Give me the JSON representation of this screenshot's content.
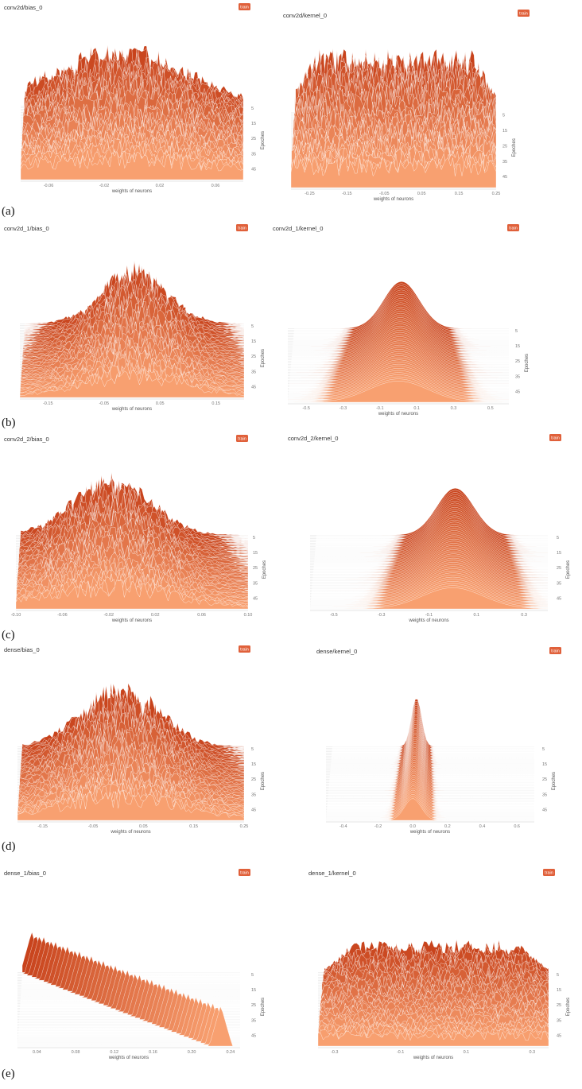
{
  "figure": {
    "colors": {
      "front": "#f8a070",
      "back": "#c8431c",
      "badge": "#e0603a",
      "grid": "#d9d9d9",
      "axis_text": "#777777"
    },
    "row_labels": [
      "(a)",
      "(b)",
      "(c)",
      "(d)",
      "(e)"
    ]
  },
  "chart_data": [
    {
      "type": "area",
      "subtype": "histogram-ridge",
      "title": "conv2d/bias_0",
      "badge": "train",
      "xlabel": "weights of neurons",
      "ylabel": "Epoches",
      "x_ticks": [
        "-0.06",
        "-0.02",
        "0.02",
        "0.06"
      ],
      "xlim": [
        -0.08,
        0.08
      ],
      "y_ticks": [
        "5",
        "15",
        "25",
        "35",
        "45"
      ],
      "ylim": [
        0,
        49
      ],
      "shape": "spiky",
      "center": -0.01,
      "width": 0.05,
      "peak": 0.9
    },
    {
      "type": "area",
      "subtype": "histogram-ridge",
      "title": "conv2d/kernel_0",
      "badge": "train",
      "xlabel": "weights of neurons",
      "ylabel": "Epoches",
      "x_ticks": [
        "-0.25",
        "-0.15",
        "-0.05",
        "0.05",
        "0.15",
        "0.25"
      ],
      "xlim": [
        -0.3,
        0.25
      ],
      "y_ticks": [
        "5",
        "15",
        "25",
        "35",
        "45"
      ],
      "ylim": [
        0,
        49
      ],
      "shape": "plateau",
      "center": -0.03,
      "width": 0.2,
      "peak": 0.88
    },
    {
      "type": "area",
      "subtype": "histogram-ridge",
      "title": "conv2d_1/bias_0",
      "badge": "train",
      "xlabel": "weights of neurons",
      "ylabel": "Epoches",
      "x_ticks": [
        "-0.15",
        "-0.05",
        "0.05",
        "0.15"
      ],
      "xlim": [
        -0.2,
        0.2
      ],
      "y_ticks": [
        "5",
        "15",
        "25",
        "35",
        "45"
      ],
      "ylim": [
        0,
        49
      ],
      "shape": "spiky",
      "center": 0.0,
      "width": 0.06,
      "peak": 0.9
    },
    {
      "type": "area",
      "subtype": "histogram-ridge",
      "title": "conv2d_1/kernel_0",
      "badge": "train",
      "xlabel": "weights of neurons",
      "ylabel": "Epoches",
      "x_ticks": [
        "-0.5",
        "-0.3",
        "-0.1",
        "0.1",
        "0.3",
        "0.5"
      ],
      "xlim": [
        -0.6,
        0.6
      ],
      "y_ticks": [
        "5",
        "15",
        "25",
        "35",
        "45"
      ],
      "ylim": [
        0,
        49
      ],
      "shape": "gaussian",
      "center": 0.0,
      "width": 0.1,
      "peak": 0.92
    },
    {
      "type": "area",
      "subtype": "histogram-ridge",
      "title": "conv2d_2/bias_0",
      "badge": "train",
      "xlabel": "weights of neurons",
      "ylabel": "Epoches",
      "x_ticks": [
        "-0.10",
        "-0.06",
        "-0.02",
        "0.02",
        "0.06",
        "0.10"
      ],
      "xlim": [
        -0.1,
        0.1
      ],
      "y_ticks": [
        "5",
        "15",
        "25",
        "35",
        "45"
      ],
      "ylim": [
        0,
        49
      ],
      "shape": "spiky",
      "center": -0.02,
      "width": 0.035,
      "peak": 0.9
    },
    {
      "type": "area",
      "subtype": "histogram-ridge",
      "title": "conv2d_2/kernel_0",
      "badge": "train",
      "xlabel": "weights of neurons",
      "ylabel": "Epoches",
      "x_ticks": [
        "-0.5",
        "-0.3",
        "-0.1",
        "0.1",
        "0.3"
      ],
      "xlim": [
        -0.6,
        0.4
      ],
      "y_ticks": [
        "5",
        "15",
        "25",
        "35",
        "45"
      ],
      "ylim": [
        0,
        49
      ],
      "shape": "gaussian",
      "center": 0.0,
      "width": 0.08,
      "peak": 0.92
    },
    {
      "type": "area",
      "subtype": "histogram-ridge",
      "title": "dense/bias_0",
      "badge": "train",
      "xlabel": "weights of neurons",
      "ylabel": "Epoches",
      "x_ticks": [
        "-0.15",
        "-0.05",
        "0.05",
        "0.15",
        "0.25"
      ],
      "xlim": [
        -0.2,
        0.25
      ],
      "y_ticks": [
        "5",
        "15",
        "25",
        "35",
        "45"
      ],
      "ylim": [
        0,
        49
      ],
      "shape": "spiky",
      "center": 0.0,
      "width": 0.08,
      "peak": 0.92
    },
    {
      "type": "area",
      "subtype": "histogram-ridge",
      "title": "dense/kernel_0",
      "badge": "train",
      "xlabel": "weights of neurons",
      "ylabel": "Epoches",
      "x_ticks": [
        "-0.4",
        "-0.2",
        "0.0",
        "0.2",
        "0.4",
        "0.6"
      ],
      "xlim": [
        -0.5,
        0.7
      ],
      "y_ticks": [
        "5",
        "15",
        "25",
        "35",
        "45"
      ],
      "ylim": [
        0,
        49
      ],
      "shape": "narrow",
      "center": 0.0,
      "width": 0.03,
      "peak": 0.95
    },
    {
      "type": "area",
      "subtype": "histogram-ridge",
      "title": "dense_1/bias_0",
      "badge": "train",
      "xlabel": "weights of neurons",
      "ylabel": "Epoches",
      "x_ticks": [
        "0.04",
        "0.08",
        "0.12",
        "0.16",
        "0.20",
        "0.24"
      ],
      "xlim": [
        0.02,
        0.25
      ],
      "y_ticks": [
        "5",
        "15",
        "25",
        "35",
        "45"
      ],
      "ylim": [
        0,
        49
      ],
      "shape": "drift",
      "center": 0.03,
      "drift_to": 0.23,
      "width": 0.006,
      "peak": 0.8
    },
    {
      "type": "area",
      "subtype": "histogram-ridge",
      "title": "dense_1/kernel_0",
      "badge": "train",
      "xlabel": "weights of neurons",
      "ylabel": "Epoches",
      "x_ticks": [
        "-0.3",
        "-0.1",
        "0.1",
        "0.3"
      ],
      "xlim": [
        -0.35,
        0.35
      ],
      "y_ticks": [
        "5",
        "15",
        "25",
        "35",
        "45"
      ],
      "ylim": [
        0,
        49
      ],
      "shape": "plateau",
      "center": 0.0,
      "width": 0.24,
      "peak": 0.45
    }
  ]
}
